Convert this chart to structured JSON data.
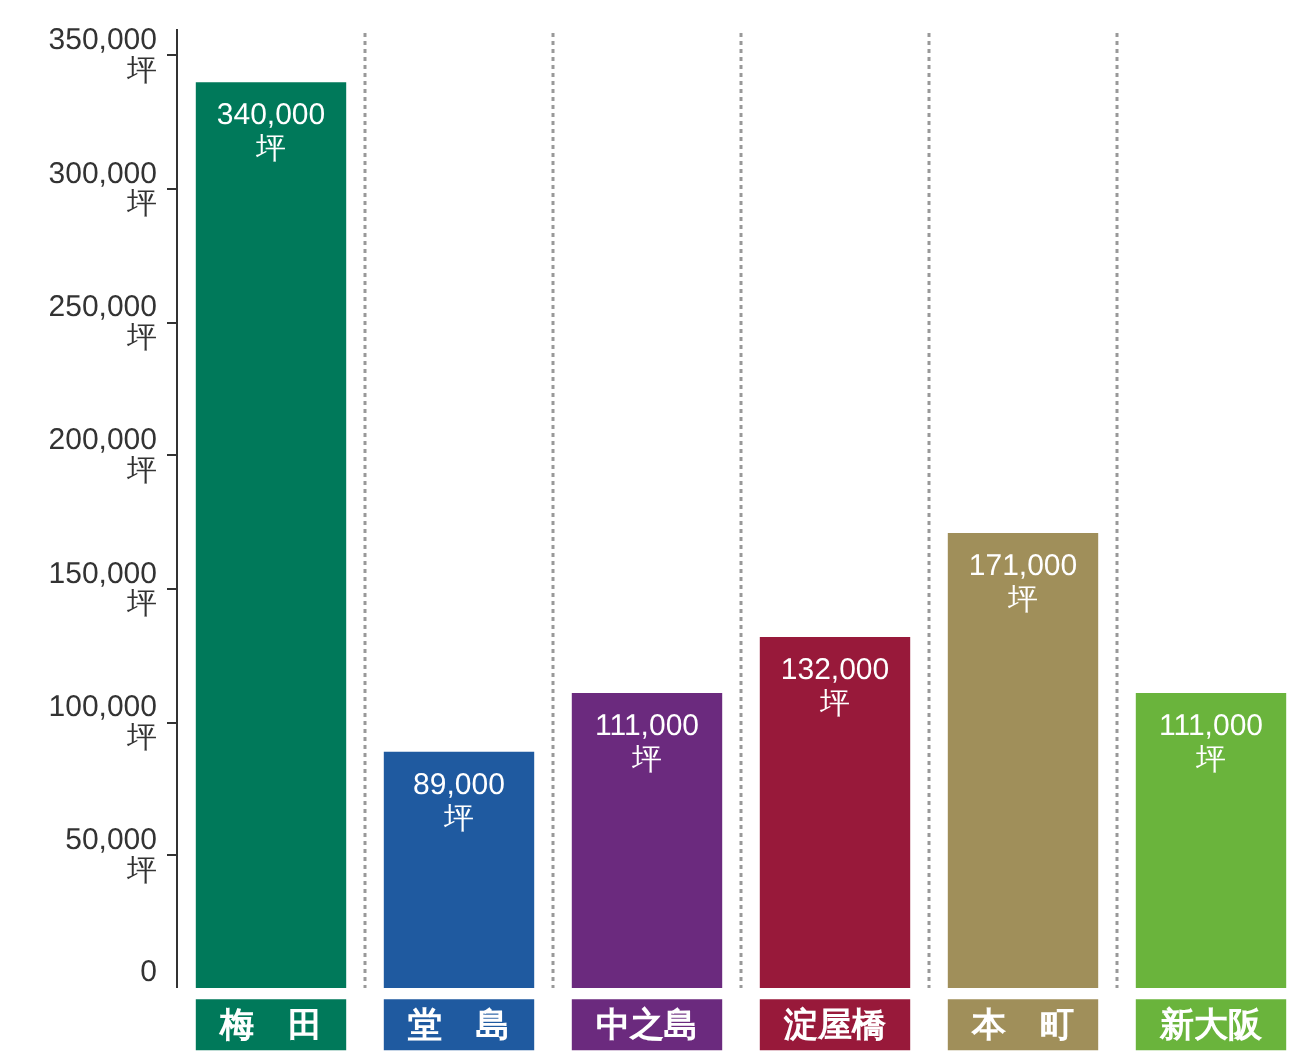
{
  "chart_data": {
    "type": "bar",
    "categories": [
      "梅　田",
      "堂　島",
      "中之島",
      "淀屋橋",
      "本　町",
      "新大阪"
    ],
    "values": [
      340000,
      89000,
      111000,
      132000,
      171000,
      111000
    ],
    "colors": [
      "#00795a",
      "#1f5aa0",
      "#6b2a7e",
      "#98193a",
      "#a08f5a",
      "#6ab43c"
    ],
    "value_labels": [
      "340,000\n坪",
      "89,000\n坪",
      "111,000\n坪",
      "132,000\n坪",
      "171,000\n坪",
      "111,000\n坪"
    ],
    "ylim": [
      0,
      360000
    ],
    "yticks": [
      0,
      {
        "value": 50000,
        "label": "50,000\n坪"
      },
      {
        "value": 100000,
        "label": "100,000\n坪"
      },
      {
        "value": 150000,
        "label": "150,000\n坪"
      },
      {
        "value": 200000,
        "label": "200,000\n坪"
      },
      {
        "value": 250000,
        "label": "250,000\n坪"
      },
      {
        "value": 300000,
        "label": "300,000\n坪"
      },
      {
        "value": 350000,
        "label": "350,000\n坪"
      }
    ],
    "grid": "x"
  }
}
